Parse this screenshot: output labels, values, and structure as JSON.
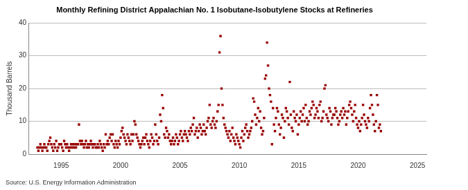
{
  "chart_data": {
    "type": "scatter",
    "title": "Monthly Refining District Appalachian No. 1 Isobutane-Isobutylene Stocks at Refineries",
    "y_label": "Thousand Barrels",
    "source": "Source: U.S. Energy Information Administration",
    "color": "#990000",
    "marker": "square",
    "grid": true,
    "xlim": [
      1992.25,
      2025.75
    ],
    "xticks": [
      1995,
      2000,
      2005,
      2010,
      2015,
      2020,
      2025
    ],
    "ylim": [
      0,
      40
    ],
    "yticks": [
      0,
      10,
      20,
      30,
      40
    ],
    "x": [
      1993,
      1993.083,
      1993.167,
      1993.25,
      1993.333,
      1993.417,
      1993.5,
      1993.583,
      1993.667,
      1993.75,
      1993.833,
      1993.917,
      1994,
      1994.083,
      1994.167,
      1994.25,
      1994.333,
      1994.417,
      1994.5,
      1994.583,
      1994.667,
      1994.75,
      1994.833,
      1994.917,
      1995,
      1995.083,
      1995.167,
      1995.25,
      1995.333,
      1995.417,
      1995.5,
      1995.583,
      1995.667,
      1995.75,
      1995.833,
      1995.917,
      1996,
      1996.083,
      1996.167,
      1996.25,
      1996.333,
      1996.417,
      1996.5,
      1996.583,
      1996.667,
      1996.75,
      1996.833,
      1996.917,
      1997,
      1997.083,
      1997.167,
      1997.25,
      1997.333,
      1997.417,
      1997.5,
      1997.583,
      1997.667,
      1997.75,
      1997.833,
      1997.917,
      1998,
      1998.083,
      1998.167,
      1998.25,
      1998.333,
      1998.417,
      1998.5,
      1998.583,
      1998.667,
      1998.75,
      1998.833,
      1998.917,
      1999,
      1999.083,
      1999.167,
      1999.25,
      1999.333,
      1999.417,
      1999.5,
      1999.583,
      1999.667,
      1999.75,
      1999.833,
      1999.917,
      2000,
      2000.083,
      2000.167,
      2000.25,
      2000.333,
      2000.417,
      2000.5,
      2000.583,
      2000.667,
      2000.75,
      2000.833,
      2000.917,
      2001,
      2001.083,
      2001.167,
      2001.25,
      2001.333,
      2001.417,
      2001.5,
      2001.583,
      2001.667,
      2001.75,
      2001.833,
      2001.917,
      2002,
      2002.083,
      2002.167,
      2002.25,
      2002.333,
      2002.417,
      2002.5,
      2002.583,
      2002.667,
      2002.75,
      2002.833,
      2002.917,
      2003,
      2003.083,
      2003.167,
      2003.25,
      2003.333,
      2003.417,
      2003.5,
      2003.583,
      2003.667,
      2003.75,
      2003.833,
      2003.917,
      2004,
      2004.083,
      2004.167,
      2004.25,
      2004.333,
      2004.417,
      2004.5,
      2004.583,
      2004.667,
      2004.75,
      2004.833,
      2004.917,
      2005,
      2005.083,
      2005.167,
      2005.25,
      2005.333,
      2005.417,
      2005.5,
      2005.583,
      2005.667,
      2005.75,
      2005.833,
      2005.917,
      2006,
      2006.083,
      2006.167,
      2006.25,
      2006.333,
      2006.417,
      2006.5,
      2006.583,
      2006.667,
      2006.75,
      2006.833,
      2006.917,
      2007,
      2007.083,
      2007.167,
      2007.25,
      2007.333,
      2007.417,
      2007.5,
      2007.583,
      2007.667,
      2007.75,
      2007.833,
      2007.917,
      2008,
      2008.083,
      2008.167,
      2008.25,
      2008.333,
      2008.417,
      2008.5,
      2008.583,
      2008.667,
      2008.75,
      2008.833,
      2008.917,
      2009,
      2009.083,
      2009.167,
      2009.25,
      2009.333,
      2009.417,
      2009.5,
      2009.583,
      2009.667,
      2009.75,
      2009.833,
      2009.917,
      2010,
      2010.083,
      2010.167,
      2010.25,
      2010.333,
      2010.417,
      2010.5,
      2010.583,
      2010.667,
      2010.75,
      2010.833,
      2010.917,
      2011,
      2011.083,
      2011.167,
      2011.25,
      2011.333,
      2011.417,
      2011.5,
      2011.583,
      2011.667,
      2011.75,
      2011.833,
      2011.917,
      2012,
      2012.083,
      2012.167,
      2012.25,
      2012.333,
      2012.417,
      2012.5,
      2012.583,
      2012.667,
      2012.75,
      2012.833,
      2012.917,
      2013,
      2013.083,
      2013.167,
      2013.25,
      2013.333,
      2013.417,
      2013.5,
      2013.583,
      2013.667,
      2013.75,
      2013.833,
      2013.917,
      2014,
      2014.083,
      2014.167,
      2014.25,
      2014.333,
      2014.417,
      2014.5,
      2014.583,
      2014.667,
      2014.75,
      2014.833,
      2014.917,
      2015,
      2015.083,
      2015.167,
      2015.25,
      2015.333,
      2015.417,
      2015.5,
      2015.583,
      2015.667,
      2015.75,
      2015.833,
      2015.917,
      2016,
      2016.083,
      2016.167,
      2016.25,
      2016.333,
      2016.417,
      2016.5,
      2016.583,
      2016.667,
      2016.75,
      2016.833,
      2016.917,
      2017,
      2017.083,
      2017.167,
      2017.25,
      2017.333,
      2017.417,
      2017.5,
      2017.583,
      2017.667,
      2017.75,
      2017.833,
      2017.917,
      2018,
      2018.083,
      2018.167,
      2018.25,
      2018.333,
      2018.417,
      2018.5,
      2018.583,
      2018.667,
      2018.75,
      2018.833,
      2018.917,
      2019,
      2019.083,
      2019.167,
      2019.25,
      2019.333,
      2019.417,
      2019.5,
      2019.583,
      2019.667,
      2019.75,
      2019.833,
      2019.917,
      2020,
      2020.083,
      2020.167,
      2020.25,
      2020.333,
      2020.417,
      2020.5,
      2020.583,
      2020.667,
      2020.75,
      2020.833,
      2020.917,
      2021,
      2021.083,
      2021.167,
      2021.25,
      2021.333,
      2021.417,
      2021.5,
      2021.583,
      2021.667,
      2021.75,
      2021.833,
      2021.917
    ],
    "values": [
      2,
      1,
      2,
      3,
      2,
      1,
      2,
      3,
      2,
      2,
      1,
      3,
      4,
      5,
      3,
      2,
      1,
      3,
      2,
      4,
      1,
      2,
      3,
      3,
      3,
      2,
      1,
      4,
      3,
      2,
      3,
      2,
      1,
      2,
      3,
      2,
      3,
      2,
      3,
      2,
      3,
      3,
      9,
      4,
      3,
      4,
      3,
      2,
      3,
      4,
      2,
      3,
      2,
      3,
      4,
      3,
      2,
      3,
      3,
      2,
      2,
      3,
      2,
      4,
      3,
      2,
      1,
      3,
      2,
      6,
      3,
      4,
      3,
      5,
      6,
      4,
      6,
      3,
      2,
      4,
      3,
      2,
      4,
      3,
      5,
      7,
      8,
      6,
      5,
      4,
      3,
      6,
      5,
      4,
      3,
      6,
      4,
      6,
      10,
      9,
      6,
      5,
      4,
      3,
      2,
      3,
      4,
      5,
      3,
      5,
      6,
      4,
      3,
      2,
      4,
      6,
      5,
      3,
      4,
      9,
      6,
      4,
      3,
      5,
      12,
      10,
      18,
      14,
      6,
      5,
      8,
      7,
      5,
      6,
      4,
      3,
      4,
      5,
      3,
      4,
      6,
      5,
      3,
      4,
      6,
      7,
      5,
      4,
      6,
      7,
      6,
      5,
      4,
      7,
      6,
      8,
      7,
      9,
      11,
      6,
      7,
      8,
      5,
      7,
      9,
      8,
      6,
      7,
      9,
      7,
      6,
      8,
      10,
      11,
      15,
      9,
      8,
      10,
      11,
      9,
      8,
      10,
      13,
      15,
      31,
      36,
      20,
      15,
      11,
      9,
      8,
      7,
      6,
      5,
      7,
      4,
      6,
      8,
      5,
      4,
      3,
      6,
      5,
      4,
      3,
      2,
      5,
      7,
      4,
      6,
      8,
      9,
      7,
      5,
      6,
      7,
      8,
      10,
      17,
      16,
      12,
      9,
      11,
      14,
      10,
      13,
      8,
      6,
      7,
      11,
      23,
      24,
      34,
      27,
      20,
      18,
      16,
      3,
      14,
      9,
      7,
      11,
      14,
      13,
      9,
      6,
      8,
      12,
      11,
      5,
      10,
      14,
      13,
      11,
      9,
      22,
      12,
      8,
      7,
      13,
      11,
      10,
      12,
      6,
      9,
      11,
      13,
      10,
      12,
      14,
      10,
      15,
      11,
      9,
      10,
      13,
      12,
      14,
      16,
      15,
      11,
      12,
      14,
      13,
      11,
      15,
      16,
      10,
      11,
      13,
      20,
      21,
      12,
      11,
      10,
      14,
      13,
      9,
      11,
      12,
      12,
      14,
      13,
      11,
      9,
      10,
      12,
      13,
      11,
      14,
      12,
      13,
      9,
      11,
      13,
      15,
      16,
      14,
      12,
      10,
      13,
      15,
      11,
      9,
      8,
      10,
      7,
      9,
      11,
      15,
      12,
      10,
      9,
      8,
      11,
      10,
      14,
      18,
      15,
      12,
      9,
      7,
      10,
      18,
      15,
      8,
      9,
      7
    ]
  }
}
